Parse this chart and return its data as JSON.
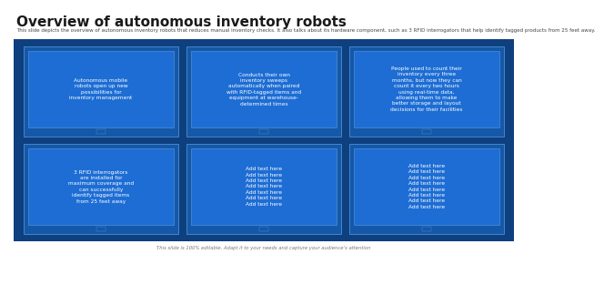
{
  "title": "Overview of autonomous inventory robots",
  "subtitle": "This slide depicts the overview of autonomous inventory robots that reduces manual inventory checks. It also talks about its hardware component, such as 3 RFID interrogators that help identify tagged products from 25 feet away.",
  "footer": "This slide is 100% editable. Adapt it to your needs and capture your audience’s attention",
  "bg_color": "#0e3f7e",
  "outer_card_color": "#1558a8",
  "inner_card_color": "#1d6dd4",
  "border_color": "#4d8fd4",
  "connector_color": "#0e3f7e",
  "text_color": "#ffffff",
  "title_color": "#1a1a1a",
  "subtitle_color": "#444444",
  "footer_color": "#777777",
  "cards": [
    {
      "row": 0,
      "col": 0,
      "text": "Autonomous mobile\nrobots open up new\npossibilities for\ninventory management"
    },
    {
      "row": 0,
      "col": 1,
      "text": "Conducts their own\ninventory sweeps\nautomatically when paired\nwith RFID-tagged items and\nequipment at warehouse-\ndetermined times"
    },
    {
      "row": 0,
      "col": 2,
      "text": "People used to count their\ninventory every three\nmonths, but now they can\ncount it every two hours\nusing real-time data,\nallowing them to make\nbetter storage and layout\ndecisions for their facilities"
    },
    {
      "row": 1,
      "col": 0,
      "text": "3 RFID interrogators\nare installed for\nmaximum coverage and\ncan successfully\nidentify tagged items\nfrom 25 feet away"
    },
    {
      "row": 1,
      "col": 1,
      "text": "Add text here\nAdd text here\nAdd text here\nAdd text here\nAdd text here\nAdd text here\nAdd text here"
    },
    {
      "row": 1,
      "col": 2,
      "text": "Add text here\nAdd text here\nAdd text here\nAdd text here\nAdd text here\nAdd text here\nAdd text here\nAdd text here"
    }
  ],
  "title_fontsize": 11,
  "subtitle_fontsize": 4.0,
  "card_text_fontsize": 4.2,
  "footer_fontsize": 3.8
}
